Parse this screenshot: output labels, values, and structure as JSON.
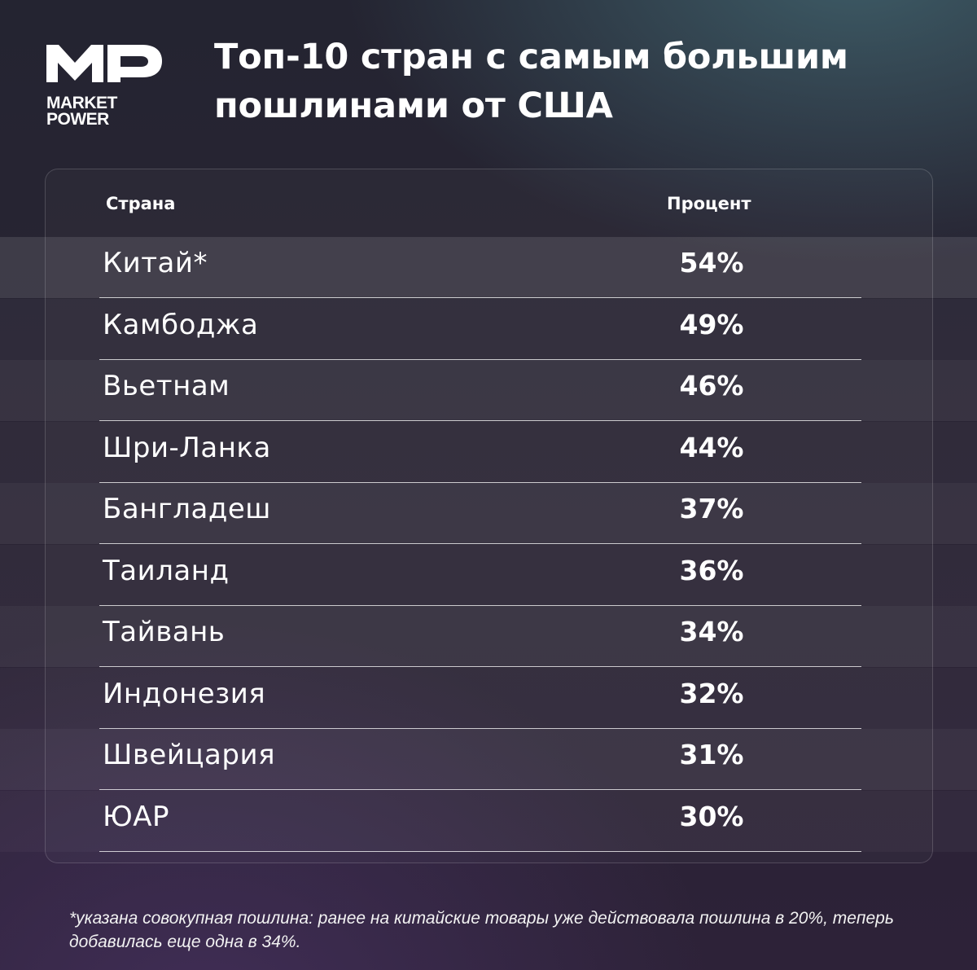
{
  "brand": {
    "word1": "MARKET",
    "word2": "POWER"
  },
  "title": "Топ-10 стран с самым большим пошлинами от США",
  "chart_data": {
    "type": "table",
    "columns": [
      "Страна",
      "Процент"
    ],
    "rows": [
      {
        "country": "Китай*",
        "percent": "54%",
        "value": 54
      },
      {
        "country": "Камбоджа",
        "percent": "49%",
        "value": 49
      },
      {
        "country": "Вьетнам",
        "percent": "46%",
        "value": 46
      },
      {
        "country": "Шри-Ланка",
        "percent": "44%",
        "value": 44
      },
      {
        "country": "Бангладеш",
        "percent": "37%",
        "value": 37
      },
      {
        "country": "Таиланд",
        "percent": "36%",
        "value": 36
      },
      {
        "country": "Тайвань",
        "percent": "34%",
        "value": 34
      },
      {
        "country": "Индонезия",
        "percent": "32%",
        "value": 32
      },
      {
        "country": "Швейцария",
        "percent": "31%",
        "value": 31
      },
      {
        "country": "ЮАР",
        "percent": "30%",
        "value": 30
      }
    ]
  },
  "footnote": "*указана совокупная пошлина: ранее на китайские товары уже действовала пошлина в 20%, теперь добавилась еще одна в 34%."
}
